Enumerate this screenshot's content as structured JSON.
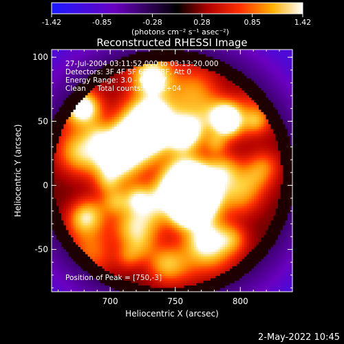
{
  "chart_data": {
    "type": "heatmap",
    "title": "Reconstructed RHESSI Image",
    "xlabel": "Heliocentric X (arcsec)",
    "ylabel": "Heliocentric Y (arcsec)",
    "xlim": [
      655,
      840
    ],
    "ylim": [
      -83,
      106
    ],
    "x_ticks": [
      700,
      750,
      800
    ],
    "y_ticks": [
      -50,
      0,
      50,
      100
    ],
    "colorbar": {
      "label": "(photons cm⁻² s⁻¹ asec⁻²)",
      "ticks": [
        "-1.42",
        "-0.85",
        "-0.28",
        "0.28",
        "0.85",
        "1.42"
      ],
      "range": [
        -1.42,
        1.42
      ],
      "colors": [
        "#1a1aff",
        "#6a00c0",
        "#000000",
        "#b00000",
        "#ff3000",
        "#ffb000",
        "#ffffff"
      ]
    },
    "annotations": [
      "27-Jul-2004 03:11:52.000 to 03:13:20.000",
      "Detectors: 3F 4F 5F 6F 7F 8F, Att 0",
      "Energy Range: 3.0 - 6.0 keV",
      "Clean     Total counts: 1.68E+04"
    ],
    "peak_text": "Position of Peak = [750,-3]",
    "peak_position": [
      750,
      -3
    ],
    "timestamp": "2-May-2022 10:45"
  }
}
